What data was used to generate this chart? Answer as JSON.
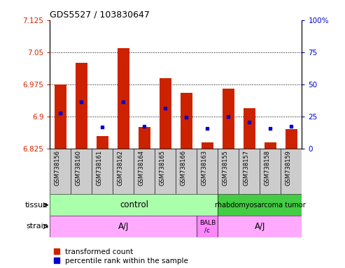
{
  "title": "GDS5527 / 103830647",
  "samples": [
    "GSM738156",
    "GSM738160",
    "GSM738161",
    "GSM738162",
    "GSM738164",
    "GSM738165",
    "GSM738166",
    "GSM738163",
    "GSM738155",
    "GSM738157",
    "GSM738158",
    "GSM738159"
  ],
  "red_values": [
    6.975,
    7.025,
    6.855,
    7.06,
    6.875,
    6.99,
    6.955,
    6.84,
    6.965,
    6.92,
    6.84,
    6.87
  ],
  "blue_values": [
    6.908,
    6.935,
    6.875,
    6.935,
    6.878,
    6.92,
    6.898,
    6.872,
    6.9,
    6.887,
    6.872,
    6.878
  ],
  "ymin": 6.825,
  "ymax": 7.125,
  "yticks": [
    6.825,
    6.9,
    6.975,
    7.05,
    7.125
  ],
  "right_yticks": [
    0,
    25,
    50,
    75,
    100
  ],
  "bar_color": "#CC2200",
  "dot_color": "#0000CC",
  "tick_color_left": "#CC2200",
  "tick_color_right": "#0000CC",
  "tissue_boxes": [
    {
      "label": "control",
      "start": 0,
      "end": 7,
      "color": "#AAFFAA"
    },
    {
      "label": "rhabdomyosarcoma tumor",
      "start": 8,
      "end": 11,
      "color": "#44CC44"
    }
  ],
  "strain_boxes": [
    {
      "label": "A/J",
      "start": 0,
      "end": 6,
      "color": "#FFAAFF"
    },
    {
      "label": "BALB\n/c",
      "start": 7,
      "end": 7,
      "color": "#FF88FF"
    },
    {
      "label": "A/J",
      "start": 8,
      "end": 11,
      "color": "#FFAAFF"
    }
  ],
  "sample_box_color": "#CCCCCC",
  "tissue_label": "tissue",
  "strain_label": "strain",
  "legend_red": "transformed count",
  "legend_blue": "percentile rank within the sample",
  "bar_width": 0.55
}
